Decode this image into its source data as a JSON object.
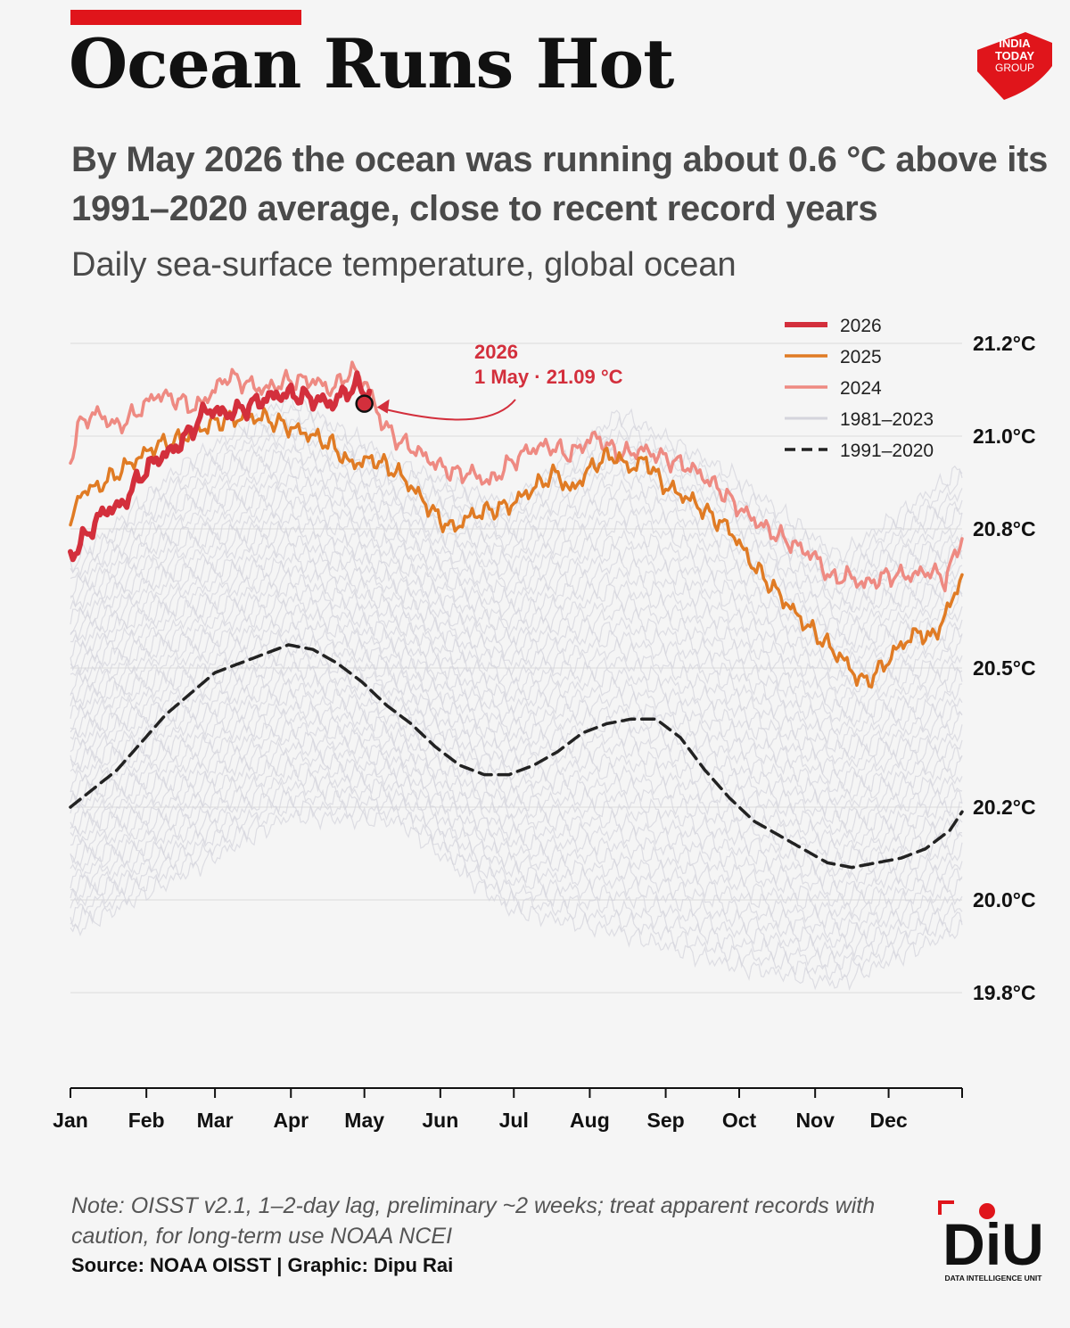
{
  "header": {
    "title": "Ocean Runs Hot",
    "subtitle": "By May 2026 the ocean was running about 0.6 °C above its 1991–2020 average, close to recent record years",
    "caption": "Daily sea-surface temperature, global ocean"
  },
  "footer": {
    "note": "Note: OISST v2.1, 1–2-day lag, preliminary ~2 weeks; treat apparent records with caution, for long-term use NOAA NCEI",
    "source": "Source: NOAA OISST | Graphic: Dipu Rai"
  },
  "logos": {
    "india_today": [
      "INDIA",
      "TODAY",
      "GROUP"
    ],
    "diu_mark": "DiU",
    "diu_tagline": "DATA INTELLIGENCE UNIT"
  },
  "colors": {
    "y2026": "#d32f3c",
    "y2025": "#e07b24",
    "y2024": "#ee8a82",
    "historical": "#d4d4dc",
    "climatology": "#222222",
    "brand_red": "#e0151b"
  },
  "chart_data": {
    "type": "line",
    "title": "",
    "xlabel": "",
    "ylabel": "",
    "x_unit": "day of year",
    "xlim": [
      1,
      365
    ],
    "ylim": [
      19.63,
      21.3
    ],
    "y_ticks": [
      19.8,
      20.0,
      20.2,
      20.5,
      20.8,
      21.0,
      21.2
    ],
    "y_tick_labels": [
      "19.8°C",
      "20.0°C",
      "20.2°C",
      "20.5°C",
      "20.8°C",
      "21.0°C",
      "21.2°C"
    ],
    "x_ticks": [
      1,
      32,
      60,
      91,
      121,
      152,
      182,
      213,
      244,
      274,
      305,
      335
    ],
    "x_tick_labels": [
      "Jan",
      "Feb",
      "Mar",
      "Apr",
      "May",
      "Jun",
      "Jul",
      "Aug",
      "Sep",
      "Oct",
      "Nov",
      "Dec"
    ],
    "grid": true,
    "legend": "top-right",
    "series": [
      {
        "name": "2026",
        "style": "bold",
        "x": [
          1,
          8,
          15,
          22,
          29,
          36,
          43,
          50,
          57,
          62,
          66,
          72,
          80,
          87,
          92,
          100,
          108,
          112,
          118,
          123
        ],
        "y": [
          20.74,
          20.79,
          20.84,
          20.85,
          20.91,
          20.95,
          20.97,
          21.01,
          21.06,
          21.05,
          21.05,
          21.06,
          21.08,
          21.09,
          21.09,
          21.08,
          21.07,
          21.09,
          21.11,
          21.09
        ]
      },
      {
        "name": "2025",
        "x": [
          1,
          5,
          12,
          20,
          28,
          36,
          44,
          52,
          60,
          70,
          80,
          90,
          100,
          108,
          115,
          125,
          135,
          142,
          150,
          157,
          165,
          172,
          180,
          188,
          196,
          200,
          205,
          210,
          215,
          222,
          230,
          236,
          242,
          248,
          255,
          262,
          270,
          280,
          290,
          300,
          310,
          318,
          322,
          326,
          332,
          340,
          348,
          352,
          358,
          365
        ],
        "y": [
          20.8,
          20.88,
          20.89,
          20.92,
          20.95,
          20.98,
          20.99,
          21.01,
          21.03,
          21.04,
          21.04,
          21.02,
          21.0,
          20.98,
          20.94,
          20.95,
          20.92,
          20.88,
          20.83,
          20.8,
          20.83,
          20.84,
          20.85,
          20.88,
          20.91,
          20.92,
          20.88,
          20.91,
          20.94,
          20.96,
          20.93,
          20.95,
          20.9,
          20.88,
          20.86,
          20.83,
          20.8,
          20.72,
          20.66,
          20.6,
          20.55,
          20.51,
          20.48,
          20.47,
          20.5,
          20.55,
          20.58,
          20.56,
          20.61,
          20.7
        ]
      },
      {
        "name": "2024",
        "x": [
          1,
          5,
          12,
          20,
          28,
          36,
          44,
          52,
          60,
          65,
          70,
          80,
          90,
          100,
          108,
          113,
          118,
          123,
          128,
          135,
          142,
          150,
          158,
          165,
          172,
          180,
          188,
          196,
          205,
          215,
          225,
          235,
          245,
          255,
          265,
          275,
          285,
          295,
          305,
          312,
          318,
          325,
          335,
          345,
          352,
          358,
          365
        ],
        "y": [
          20.95,
          21.03,
          21.05,
          21.02,
          21.05,
          21.09,
          21.08,
          21.06,
          21.1,
          21.13,
          21.12,
          21.1,
          21.12,
          21.12,
          21.1,
          21.13,
          21.14,
          21.1,
          21.03,
          20.99,
          20.97,
          20.94,
          20.92,
          20.92,
          20.9,
          20.94,
          20.97,
          20.98,
          20.96,
          21.0,
          20.96,
          20.97,
          20.95,
          20.93,
          20.89,
          20.84,
          20.8,
          20.77,
          20.74,
          20.69,
          20.7,
          20.68,
          20.7,
          20.7,
          20.71,
          20.69,
          20.78
        ]
      },
      {
        "name": "1991–2020",
        "style": "dashed",
        "x": [
          1,
          20,
          40,
          60,
          70,
          80,
          90,
          100,
          110,
          120,
          130,
          140,
          150,
          160,
          170,
          180,
          190,
          200,
          210,
          220,
          230,
          240,
          250,
          260,
          270,
          280,
          290,
          300,
          310,
          320,
          330,
          340,
          350,
          360,
          365
        ],
        "y": [
          20.2,
          20.28,
          20.4,
          20.49,
          20.51,
          20.53,
          20.55,
          20.54,
          20.51,
          20.47,
          20.42,
          20.38,
          20.33,
          20.29,
          20.27,
          20.27,
          20.29,
          20.32,
          20.36,
          20.38,
          20.39,
          20.39,
          20.35,
          20.28,
          20.22,
          20.17,
          20.14,
          20.11,
          20.08,
          20.07,
          20.08,
          20.09,
          20.11,
          20.15,
          20.19
        ]
      }
    ],
    "background_series": {
      "name": "1981–2023",
      "description_range": "one faint line per year, 1981–2023",
      "low_envelope_y": [
        19.93,
        20.05,
        20.18,
        20.17,
        19.98,
        19.93,
        19.86,
        19.82,
        19.94
      ],
      "high_envelope_y": [
        20.72,
        20.93,
        21.08,
        20.94,
        20.85,
        21.05,
        20.92,
        20.74,
        20.93
      ],
      "envelope_x": [
        1,
        45,
        90,
        135,
        180,
        225,
        270,
        315,
        365
      ]
    },
    "annotation": {
      "year": "2026",
      "label": "1 May · 21.09 °C",
      "x": 121,
      "y": 21.07
    }
  }
}
